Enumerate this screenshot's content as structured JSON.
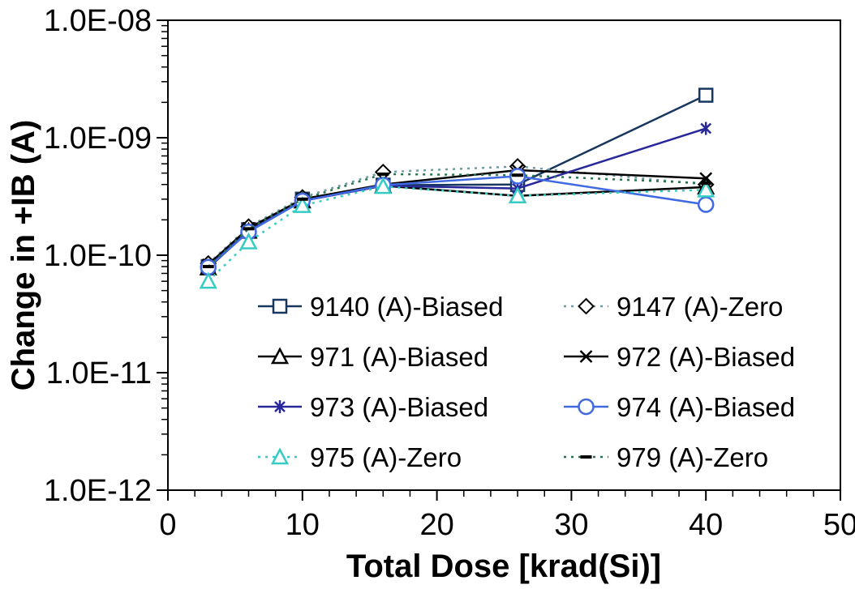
{
  "chart_data": {
    "type": "line",
    "title": "",
    "xlabel": "Total Dose [krad(Si)]",
    "ylabel": "Change in +IB (A)",
    "grid": false,
    "background": "#ffffff",
    "frame_color": "#000000",
    "xlim": [
      0,
      50
    ],
    "x_major_ticks": [
      0,
      10,
      20,
      30,
      40,
      50
    ],
    "x_tick_labels": [
      "0",
      "10",
      "20",
      "30",
      "40",
      "50"
    ],
    "x_minor_step": 2,
    "yscale": "log",
    "ylim": [
      1e-12,
      1e-08
    ],
    "y_major_ticks": [
      1e-08,
      1e-09,
      1e-10,
      1e-11,
      1e-12
    ],
    "y_tick_labels": [
      "1.0E-08",
      "1.0E-09",
      "1.0E-10",
      "1.0E-11",
      "1.0E-12"
    ],
    "legend_position": "inside bottom-center, 2 columns, no border",
    "x": [
      3,
      6,
      10,
      16,
      26,
      40
    ],
    "series": [
      {
        "name": "9140 (A)-Biased",
        "line": "solid",
        "line_color": "#17375E",
        "marker": "square",
        "marker_color": "#17375E",
        "values": [
          8e-11,
          1.65e-10,
          3e-10,
          3.95e-10,
          4e-10,
          2.3e-09
        ]
      },
      {
        "name": "9147 (A)-Zero",
        "line": "dotted",
        "line_color": "#6E9BA4",
        "marker": "diamond",
        "marker_color": "#000000",
        "values": [
          8.5e-11,
          1.75e-10,
          3.1e-10,
          5.1e-10,
          5.7e-10,
          4e-10
        ]
      },
      {
        "name": "971 (A)-Biased",
        "line": "solid",
        "line_color": "#000000",
        "marker": "triangle",
        "marker_color": "#000000",
        "values": [
          7.8e-11,
          1.6e-10,
          2.9e-10,
          3.9e-10,
          3.2e-10,
          3.8e-10
        ]
      },
      {
        "name": "972 (A)-Biased",
        "line": "solid",
        "line_color": "#000000",
        "marker": "x",
        "marker_color": "#000000",
        "values": [
          8.3e-11,
          1.7e-10,
          3e-10,
          4e-10,
          5.3e-10,
          4.5e-10
        ]
      },
      {
        "name": "973 (A)-Biased",
        "line": "solid",
        "line_color": "#28289B",
        "marker": "asterisk",
        "marker_color": "#28289B",
        "values": [
          8e-11,
          1.62e-10,
          2.9e-10,
          3.9e-10,
          3.7e-10,
          1.2e-09
        ]
      },
      {
        "name": "974 (A)-Biased",
        "line": "solid",
        "line_color": "#4169E1",
        "marker": "circle",
        "marker_color": "#4169E1",
        "values": [
          7.9e-11,
          1.58e-10,
          2.9e-10,
          3.95e-10,
          4.7e-10,
          2.7e-10
        ]
      },
      {
        "name": "975 (A)-Zero",
        "line": "dotted",
        "line_color": "#35CCC4",
        "marker": "triangle",
        "marker_color": "#35CCC4",
        "values": [
          6e-11,
          1.3e-10,
          2.65e-10,
          3.85e-10,
          3.2e-10,
          3.6e-10
        ]
      },
      {
        "name": "979 (A)-Zero",
        "line": "dotted",
        "line_color": "#26734D",
        "marker": "dash",
        "marker_color": "#000000",
        "values": [
          8e-11,
          1.68e-10,
          3e-10,
          4.9e-10,
          4.8e-10,
          4.1e-10
        ]
      }
    ]
  }
}
